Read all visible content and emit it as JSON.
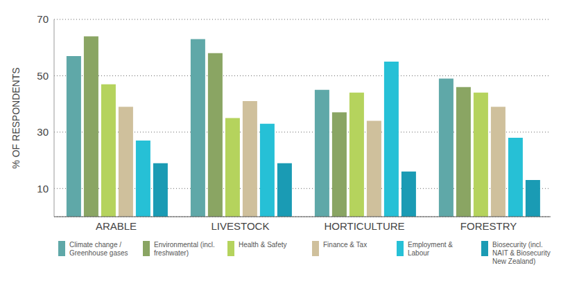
{
  "chart_data": {
    "type": "bar",
    "categories": [
      "ARABLE",
      "LIVESTOCK",
      "HORTICULTURE",
      "FORESTRY"
    ],
    "series": [
      {
        "name": "Climate change / Greenhouse gases",
        "color": "#5fa8a8",
        "values": [
          57,
          63,
          45,
          49
        ]
      },
      {
        "name": "Environmental (incl. freshwater)",
        "color": "#8aa563",
        "values": [
          64,
          58,
          37,
          46
        ]
      },
      {
        "name": "Health & Safety",
        "color": "#b5d35d",
        "values": [
          47,
          35,
          44,
          44
        ]
      },
      {
        "name": "Finance & Tax",
        "color": "#cfc09c",
        "values": [
          39,
          41,
          34,
          39
        ]
      },
      {
        "name": "Employment & Labour",
        "color": "#26c0d6",
        "values": [
          27,
          33,
          55,
          28
        ]
      },
      {
        "name": "Biosecurity (incl. NAIT & Biosecurity New Zealand)",
        "color": "#1a9bb4",
        "values": [
          19,
          19,
          16,
          13
        ]
      }
    ],
    "y_label": "% OF RESPONDENTS",
    "ylim": [
      0,
      70
    ],
    "yticks": [
      10,
      30,
      50,
      70
    ],
    "grid": true,
    "legend": "bottom"
  }
}
